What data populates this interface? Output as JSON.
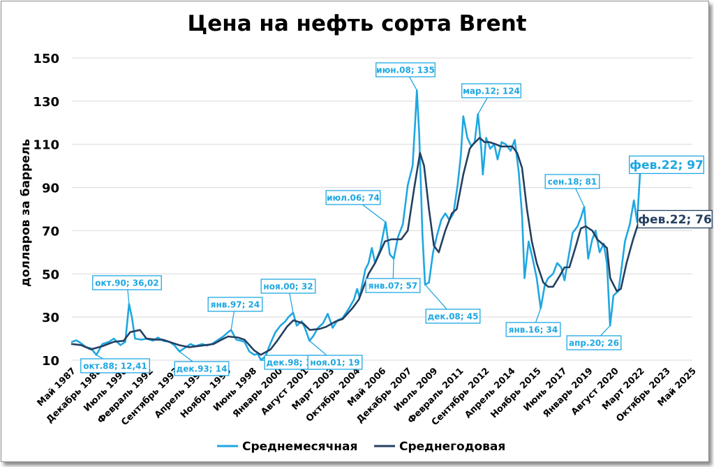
{
  "chart_data": {
    "type": "line",
    "title": "Цена на нефть сорта Brent",
    "ylabel": "долларов за баррель",
    "xlabel": "",
    "ylim": [
      10,
      150
    ],
    "yticks": [
      10,
      30,
      50,
      70,
      90,
      110,
      130,
      150
    ],
    "grid": true,
    "xticks": [
      "Май 1987",
      "Декабрь 1988",
      "Июль 1990",
      "Февраль 1992",
      "Сентябрь 1993",
      "Апрель 1995",
      "Ноябрь 1996",
      "Июнь 1998",
      "Январь 2000",
      "Август 2001",
      "Март 2003",
      "Октябрь 2004",
      "Май 2006",
      "Декабрь 2007",
      "Июль 2009",
      "Февраль 2011",
      "Сентябрь 2012",
      "Апрель 2014",
      "Ноябрь 2015",
      "Июнь 2017",
      "Январь 2019",
      "Август 2020",
      "Март 2022",
      "Октябрь 2023",
      "Май 2025"
    ],
    "legend_position": "bottom",
    "series": [
      {
        "name": "Среднемесячная",
        "color": "#1ea7e1",
        "points": [
          [
            1987.33,
            18.5
          ],
          [
            1987.6,
            19.2
          ],
          [
            1987.9,
            17.8
          ],
          [
            1988.2,
            16.0
          ],
          [
            1988.5,
            15.5
          ],
          [
            1988.83,
            12.41
          ],
          [
            1989.2,
            17.5
          ],
          [
            1989.6,
            18.5
          ],
          [
            1989.9,
            20.0
          ],
          [
            1990.3,
            17.0
          ],
          [
            1990.6,
            18.5
          ],
          [
            1990.83,
            36.02
          ],
          [
            1991.0,
            30.0
          ],
          [
            1991.2,
            20.0
          ],
          [
            1991.6,
            19.5
          ],
          [
            1991.9,
            20.0
          ],
          [
            1992.3,
            19.0
          ],
          [
            1992.6,
            20.5
          ],
          [
            1992.9,
            19.0
          ],
          [
            1993.3,
            18.5
          ],
          [
            1993.6,
            17.0
          ],
          [
            1993.92,
            14.0
          ],
          [
            1994.3,
            16.0
          ],
          [
            1994.6,
            17.5
          ],
          [
            1994.9,
            16.5
          ],
          [
            1995.3,
            17.5
          ],
          [
            1995.6,
            16.8
          ],
          [
            1995.9,
            17.5
          ],
          [
            1996.3,
            19.5
          ],
          [
            1996.6,
            21.0
          ],
          [
            1996.9,
            23.0
          ],
          [
            1997.08,
            24.0
          ],
          [
            1997.4,
            19.5
          ],
          [
            1997.7,
            19.0
          ],
          [
            1997.9,
            18.5
          ],
          [
            1998.2,
            14.0
          ],
          [
            1998.5,
            12.5
          ],
          [
            1998.7,
            13.0
          ],
          [
            1998.92,
            10.0
          ],
          [
            1999.2,
            12.0
          ],
          [
            1999.5,
            18.0
          ],
          [
            1999.8,
            23.0
          ],
          [
            2000.1,
            26.0
          ],
          [
            2000.4,
            28.0
          ],
          [
            2000.6,
            30.0
          ],
          [
            2000.88,
            32.0
          ],
          [
            2001.1,
            26.0
          ],
          [
            2001.4,
            28.0
          ],
          [
            2001.6,
            25.0
          ],
          [
            2001.88,
            19.0
          ],
          [
            2002.1,
            21.0
          ],
          [
            2002.4,
            25.0
          ],
          [
            2002.7,
            27.0
          ],
          [
            2003.0,
            31.5
          ],
          [
            2003.3,
            25.0
          ],
          [
            2003.6,
            28.5
          ],
          [
            2003.9,
            29.5
          ],
          [
            2004.3,
            34.0
          ],
          [
            2004.6,
            38.0
          ],
          [
            2004.8,
            43.0
          ],
          [
            2004.95,
            39.0
          ],
          [
            2005.3,
            52.0
          ],
          [
            2005.5,
            55.0
          ],
          [
            2005.7,
            62.0
          ],
          [
            2005.9,
            55.0
          ],
          [
            2006.2,
            61.0
          ],
          [
            2006.54,
            74.0
          ],
          [
            2006.8,
            59.0
          ],
          [
            2007.04,
            57.0
          ],
          [
            2007.3,
            67.0
          ],
          [
            2007.6,
            73.0
          ],
          [
            2007.9,
            91.0
          ],
          [
            2008.2,
            100.0
          ],
          [
            2008.38,
            124.0
          ],
          [
            2008.46,
            135.0
          ],
          [
            2008.6,
            115.0
          ],
          [
            2008.8,
            68.0
          ],
          [
            2008.96,
            45.0
          ],
          [
            2009.2,
            46.0
          ],
          [
            2009.45,
            60.0
          ],
          [
            2009.7,
            68.0
          ],
          [
            2009.95,
            75.0
          ],
          [
            2010.2,
            78.0
          ],
          [
            2010.45,
            75.0
          ],
          [
            2010.7,
            78.0
          ],
          [
            2010.95,
            91.0
          ],
          [
            2011.15,
            105.0
          ],
          [
            2011.3,
            123.0
          ],
          [
            2011.55,
            113.0
          ],
          [
            2011.8,
            109.0
          ],
          [
            2012.0,
            111.0
          ],
          [
            2012.2,
            124.0
          ],
          [
            2012.4,
            108.0
          ],
          [
            2012.5,
            96.0
          ],
          [
            2012.7,
            113.0
          ],
          [
            2012.95,
            108.0
          ],
          [
            2013.2,
            110.0
          ],
          [
            2013.4,
            103.0
          ],
          [
            2013.65,
            111.0
          ],
          [
            2013.9,
            110.0
          ],
          [
            2014.2,
            107.0
          ],
          [
            2014.45,
            112.0
          ],
          [
            2014.7,
            97.0
          ],
          [
            2014.9,
            77.0
          ],
          [
            2015.05,
            48.0
          ],
          [
            2015.3,
            65.0
          ],
          [
            2015.55,
            57.0
          ],
          [
            2015.8,
            48.0
          ],
          [
            2016.04,
            34.0
          ],
          [
            2016.3,
            45.0
          ],
          [
            2016.5,
            48.0
          ],
          [
            2016.8,
            50.0
          ],
          [
            2017.05,
            55.0
          ],
          [
            2017.3,
            53.0
          ],
          [
            2017.5,
            47.0
          ],
          [
            2017.75,
            58.0
          ],
          [
            2018.0,
            69.0
          ],
          [
            2018.3,
            72.0
          ],
          [
            2018.5,
            76.0
          ],
          [
            2018.71,
            81.0
          ],
          [
            2018.95,
            57.0
          ],
          [
            2019.2,
            66.0
          ],
          [
            2019.4,
            70.0
          ],
          [
            2019.65,
            60.0
          ],
          [
            2019.9,
            64.0
          ],
          [
            2020.1,
            55.0
          ],
          [
            2020.29,
            26.0
          ],
          [
            2020.5,
            40.0
          ],
          [
            2020.8,
            42.0
          ],
          [
            2020.95,
            50.0
          ],
          [
            2021.2,
            65.0
          ],
          [
            2021.5,
            73.0
          ],
          [
            2021.75,
            84.0
          ],
          [
            2021.95,
            74.0
          ],
          [
            2022.13,
            97.0
          ]
        ]
      },
      {
        "name": "Среднегодовая",
        "color": "#243f60",
        "points": [
          [
            1987.33,
            17.5
          ],
          [
            1987.9,
            17.0
          ],
          [
            1988.5,
            15.0
          ],
          [
            1989.2,
            16.5
          ],
          [
            1989.9,
            18.5
          ],
          [
            1990.5,
            19.0
          ],
          [
            1990.9,
            23.0
          ],
          [
            1991.5,
            24.0
          ],
          [
            1991.9,
            20.0
          ],
          [
            1992.5,
            19.5
          ],
          [
            1992.9,
            19.5
          ],
          [
            1993.5,
            18.0
          ],
          [
            1993.9,
            17.0
          ],
          [
            1994.5,
            16.0
          ],
          [
            1995.0,
            16.5
          ],
          [
            1995.5,
            17.0
          ],
          [
            1996.0,
            17.5
          ],
          [
            1996.5,
            19.5
          ],
          [
            1996.9,
            21.0
          ],
          [
            1997.5,
            20.5
          ],
          [
            1997.9,
            19.5
          ],
          [
            1998.5,
            14.5
          ],
          [
            1998.9,
            12.5
          ],
          [
            1999.5,
            15.0
          ],
          [
            1999.9,
            19.0
          ],
          [
            2000.5,
            25.5
          ],
          [
            2000.9,
            28.5
          ],
          [
            2001.5,
            27.0
          ],
          [
            2001.9,
            24.0
          ],
          [
            2002.5,
            24.5
          ],
          [
            2002.9,
            25.5
          ],
          [
            2003.5,
            28.0
          ],
          [
            2003.9,
            29.0
          ],
          [
            2004.5,
            34.0
          ],
          [
            2004.9,
            38.0
          ],
          [
            2005.5,
            50.0
          ],
          [
            2005.9,
            55.0
          ],
          [
            2006.5,
            65.0
          ],
          [
            2006.9,
            66.0
          ],
          [
            2007.5,
            66.0
          ],
          [
            2007.9,
            70.0
          ],
          [
            2008.3,
            90.0
          ],
          [
            2008.65,
            106.0
          ],
          [
            2008.9,
            100.0
          ],
          [
            2009.2,
            80.0
          ],
          [
            2009.5,
            63.0
          ],
          [
            2009.8,
            60.0
          ],
          [
            2010.2,
            70.0
          ],
          [
            2010.6,
            78.0
          ],
          [
            2010.9,
            80.0
          ],
          [
            2011.3,
            96.0
          ],
          [
            2011.7,
            108.0
          ],
          [
            2011.9,
            110.0
          ],
          [
            2012.3,
            113.0
          ],
          [
            2012.6,
            111.0
          ],
          [
            2012.9,
            111.0
          ],
          [
            2013.3,
            110.0
          ],
          [
            2013.6,
            109.0
          ],
          [
            2013.9,
            109.0
          ],
          [
            2014.3,
            109.0
          ],
          [
            2014.6,
            106.0
          ],
          [
            2014.9,
            99.0
          ],
          [
            2015.2,
            80.0
          ],
          [
            2015.5,
            65.0
          ],
          [
            2015.8,
            55.0
          ],
          [
            2016.2,
            46.0
          ],
          [
            2016.5,
            44.0
          ],
          [
            2016.8,
            44.0
          ],
          [
            2017.2,
            49.0
          ],
          [
            2017.5,
            53.0
          ],
          [
            2017.8,
            53.0
          ],
          [
            2018.2,
            63.0
          ],
          [
            2018.5,
            71.0
          ],
          [
            2018.8,
            72.0
          ],
          [
            2019.2,
            70.0
          ],
          [
            2019.5,
            66.0
          ],
          [
            2019.8,
            64.0
          ],
          [
            2020.1,
            62.0
          ],
          [
            2020.3,
            48.0
          ],
          [
            2020.7,
            42.0
          ],
          [
            2020.95,
            43.0
          ],
          [
            2021.3,
            55.0
          ],
          [
            2021.7,
            66.0
          ],
          [
            2022.13,
            76.0
          ]
        ]
      }
    ],
    "annotations": [
      {
        "text": "окт.88; 12,41",
        "series": 0,
        "x": 1988.83,
        "y": 12.41
      },
      {
        "text": "окт.90; 36,02",
        "series": 0,
        "x": 1990.83,
        "y": 36.02
      },
      {
        "text": "дек.93; 14",
        "series": 0,
        "x": 1993.92,
        "y": 14.0
      },
      {
        "text": "янв.97; 24",
        "series": 0,
        "x": 1997.08,
        "y": 24.0
      },
      {
        "text": "дек.98; 10",
        "series": 0,
        "x": 1998.92,
        "y": 10.0
      },
      {
        "text": "ноя.00; 32",
        "series": 0,
        "x": 2000.88,
        "y": 32.0
      },
      {
        "text": "ноя.01; 19",
        "series": 0,
        "x": 2001.88,
        "y": 19.0
      },
      {
        "text": "июл.06; 74",
        "series": 0,
        "x": 2006.54,
        "y": 74.0
      },
      {
        "text": "янв.07; 57",
        "series": 0,
        "x": 2007.04,
        "y": 57.0
      },
      {
        "text": "июн.08; 135",
        "series": 0,
        "x": 2008.46,
        "y": 135.0
      },
      {
        "text": "дек.08; 45",
        "series": 0,
        "x": 2008.96,
        "y": 45.0
      },
      {
        "text": "мар.12; 124",
        "series": 0,
        "x": 2012.2,
        "y": 124.0
      },
      {
        "text": "янв.16; 34",
        "series": 0,
        "x": 2016.04,
        "y": 34.0
      },
      {
        "text": "сен.18; 81",
        "series": 0,
        "x": 2018.71,
        "y": 81.0
      },
      {
        "text": "апр.20; 26",
        "series": 0,
        "x": 2020.29,
        "y": 26.0
      },
      {
        "text": "фев.22; 97",
        "series": 0,
        "x": 2022.13,
        "y": 97.0,
        "big": true
      },
      {
        "text": "фев.22; 76",
        "series": 1,
        "x": 2022.13,
        "y": 76.0,
        "big": true
      }
    ]
  }
}
